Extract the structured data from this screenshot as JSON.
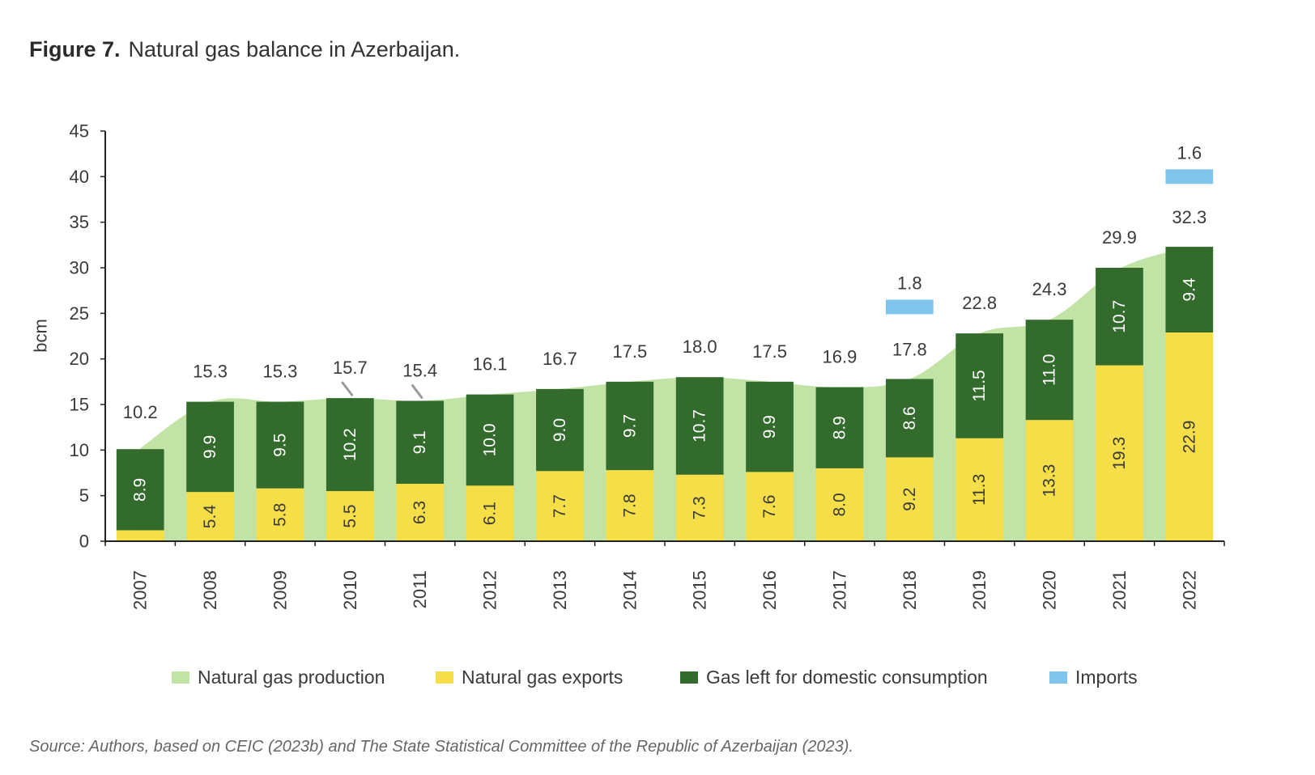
{
  "figure": {
    "label": "Figure 7.",
    "title": "Natural gas balance in Azerbaijan."
  },
  "source_note": "Source: Authors, based on CEIC (2023b) and The State Statistical Committee of the Republic of Azerbaijan (2023).",
  "colors": {
    "production": "#c1e3a6",
    "exports": "#f6de48",
    "domestic": "#336b2d",
    "imports": "#7fc4ea",
    "axis": "#222222",
    "text": "#3a3a3a"
  },
  "legend": [
    {
      "key": "production",
      "label": "Natural gas production"
    },
    {
      "key": "exports",
      "label": "Natural gas exports"
    },
    {
      "key": "domestic",
      "label": "Gas left for domestic consumption"
    },
    {
      "key": "imports",
      "label": "Imports"
    }
  ],
  "chart_data": {
    "type": "bar",
    "subtype": "stacked bar with area background",
    "title": "Natural gas balance in Azerbaijan.",
    "xlabel": "",
    "ylabel": "bcm",
    "ylim": [
      0,
      45
    ],
    "yticks": [
      0,
      5,
      10,
      15,
      20,
      25,
      30,
      35,
      40,
      45
    ],
    "grid": false,
    "legend_position": "bottom",
    "categories": [
      "2007",
      "2008",
      "2009",
      "2010",
      "2011",
      "2012",
      "2013",
      "2014",
      "2015",
      "2016",
      "2017",
      "2018",
      "2019",
      "2020",
      "2021",
      "2022"
    ],
    "series": [
      {
        "key": "production",
        "name": "Natural gas production",
        "kind": "area",
        "values": [
          10.2,
          15.3,
          15.3,
          15.7,
          15.4,
          16.1,
          16.7,
          17.5,
          18.0,
          17.5,
          16.9,
          17.8,
          22.8,
          24.3,
          29.9,
          32.3
        ],
        "labels": [
          "10.2",
          "15.3",
          "15.3",
          "15.7",
          "15.4",
          "16.1",
          "16.7",
          "17.5",
          "18.0",
          "17.5",
          "16.9",
          "17.8",
          "22.8",
          "24.3",
          "29.9",
          "32.3"
        ]
      },
      {
        "key": "exports",
        "name": "Natural gas exports",
        "kind": "bar",
        "values": [
          1.2,
          5.4,
          5.8,
          5.5,
          6.3,
          6.1,
          7.7,
          7.8,
          7.3,
          7.6,
          8.0,
          9.2,
          11.3,
          13.3,
          19.3,
          22.9
        ],
        "labels": [
          "",
          "5.4",
          "5.8",
          "5.5",
          "6.3",
          "6.1",
          "7.7",
          "7.8",
          "7.3",
          "7.6",
          "8.0",
          "9.2",
          "11.3",
          "13.3",
          "19.3",
          "22.9"
        ]
      },
      {
        "key": "domestic",
        "name": "Gas left for domestic consumption",
        "kind": "bar",
        "values": [
          8.9,
          9.9,
          9.5,
          10.2,
          9.1,
          10.0,
          9.0,
          9.7,
          10.7,
          9.9,
          8.9,
          8.6,
          11.5,
          11.0,
          10.7,
          9.4
        ],
        "labels": [
          "8.9",
          "9.9",
          "9.5",
          "10.2",
          "9.1",
          "10.0",
          "9.0",
          "9.7",
          "10.7",
          "9.9",
          "8.9",
          "8.6",
          "11.5",
          "11.0",
          "10.7",
          "9.4"
        ]
      },
      {
        "key": "imports",
        "name": "Imports",
        "kind": "marker",
        "values": [
          null,
          null,
          null,
          null,
          null,
          null,
          null,
          null,
          null,
          null,
          null,
          1.8,
          null,
          null,
          null,
          1.6
        ],
        "labels": [
          "",
          "",
          "",
          "",
          "",
          "",
          "",
          "",
          "",
          "",
          "",
          "1.8",
          "",
          "",
          "",
          "1.6"
        ]
      }
    ]
  }
}
